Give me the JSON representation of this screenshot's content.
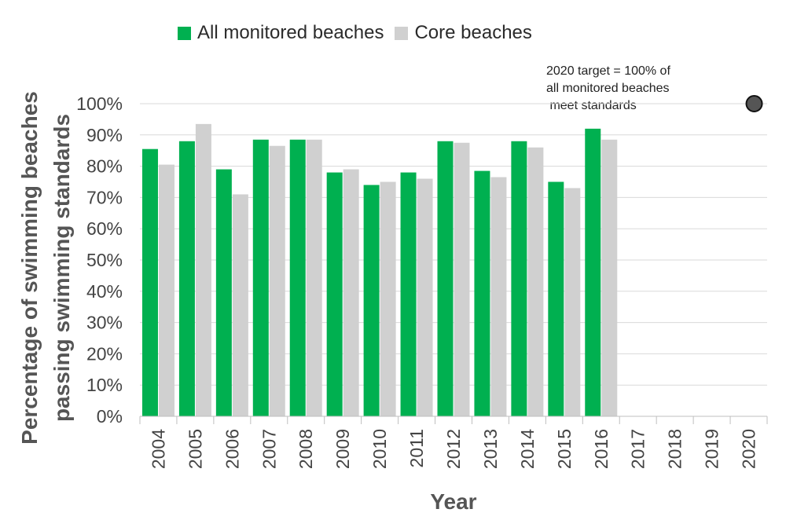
{
  "chart_data": {
    "type": "bar",
    "title": "",
    "xlabel": "Year",
    "ylabel": "Percentage of swimming beaches passing swimming standards",
    "ylabel_lines": [
      "Percentage of swimming beaches",
      "passing swimming standards"
    ],
    "ylim": [
      0,
      100
    ],
    "yticks": [
      "0%",
      "10%",
      "20%",
      "30%",
      "40%",
      "50%",
      "60%",
      "70%",
      "80%",
      "90%",
      "100%"
    ],
    "ytick_values": [
      0,
      10,
      20,
      30,
      40,
      50,
      60,
      70,
      80,
      90,
      100
    ],
    "grid": true,
    "legend": "top",
    "categories": [
      "2004",
      "2005",
      "2006",
      "2007",
      "2008",
      "2009",
      "2010",
      "2011",
      "2012",
      "2013",
      "2014",
      "2015",
      "2016",
      "2017",
      "2018",
      "2019",
      "2020"
    ],
    "series": [
      {
        "name": "All monitored beaches",
        "color": "#00b050",
        "values": [
          85.5,
          88,
          79,
          88.5,
          88.5,
          78,
          74,
          78,
          88,
          78.5,
          88,
          75,
          92,
          null,
          null,
          null,
          null
        ]
      },
      {
        "name": "Core beaches",
        "color": "#d0d0d0",
        "values": [
          80.5,
          93.5,
          71,
          86.5,
          88.5,
          79,
          75,
          76,
          87.5,
          76.5,
          86,
          73,
          88.5,
          null,
          null,
          null,
          null
        ]
      }
    ],
    "target": {
      "category": "2020",
      "value": 100,
      "color": "#555555"
    },
    "annotation": "2020 target = 100% of\nall monitored beaches\n meet standards"
  }
}
